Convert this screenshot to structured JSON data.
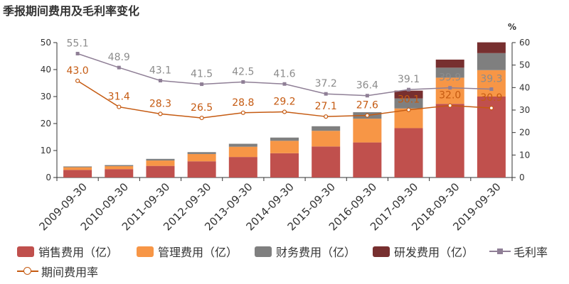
{
  "title": "季报期间费用及毛利率变化",
  "chart_data": {
    "type": "bar",
    "categories": [
      "2009-09-30",
      "2010-09-30",
      "2011-09-30",
      "2012-09-30",
      "2013-09-30",
      "2014-09-30",
      "2015-09-30",
      "2016-09-30",
      "2017-09-30",
      "2018-09-30",
      "2019-09-30"
    ],
    "series": [
      {
        "name": "销售费用（亿）",
        "color": "#c0504d",
        "values": [
          2.8,
          3.1,
          4.3,
          6.0,
          7.6,
          9.0,
          11.5,
          13.0,
          18.3,
          27.3,
          30.0
        ]
      },
      {
        "name": "管理费用（亿）",
        "color": "#f79646",
        "values": [
          1.0,
          1.1,
          2.0,
          2.7,
          3.8,
          4.6,
          5.8,
          8.8,
          7.3,
          9.7,
          9.8
        ]
      },
      {
        "name": "财务费用（亿）",
        "color": "#7f7f7f",
        "values": [
          0.3,
          0.4,
          0.6,
          0.7,
          1.1,
          1.2,
          1.7,
          2.4,
          3.7,
          3.7,
          6.3
        ]
      },
      {
        "name": "研发费用（亿）",
        "color": "#772f2f",
        "values": [
          0,
          0,
          0,
          0,
          0,
          0,
          0,
          0,
          2.9,
          3.0,
          4.0
        ]
      }
    ],
    "lines": [
      {
        "name": "毛利率",
        "color": "#8f7f96",
        "marker": "square",
        "axis": "right",
        "values": [
          55.1,
          48.9,
          43.1,
          41.5,
          42.5,
          41.6,
          37.2,
          36.4,
          39.1,
          39.9,
          39.3
        ]
      },
      {
        "name": "期间费用率",
        "color": "#c55a11",
        "marker": "circle",
        "axis": "right",
        "values": [
          43.0,
          31.4,
          28.3,
          26.5,
          28.8,
          29.2,
          27.1,
          27.6,
          30.1,
          32.0,
          30.9
        ]
      }
    ],
    "left_axis": {
      "ylim": [
        0,
        50
      ],
      "ticks": [
        0,
        10,
        20,
        30,
        40,
        50
      ]
    },
    "right_axis": {
      "ylim": [
        0,
        60
      ],
      "ticks": [
        0,
        10,
        20,
        30,
        40,
        50,
        60
      ],
      "unit_label": "%"
    },
    "legend_position": "bottom",
    "grid": false
  }
}
